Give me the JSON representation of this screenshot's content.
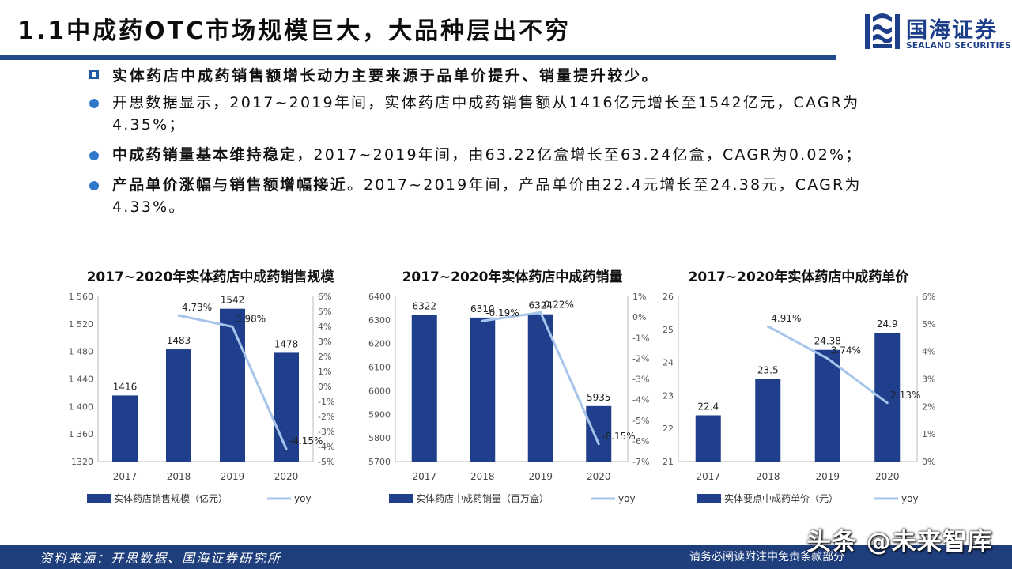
{
  "header": {
    "title": "1.1中成药OTC市场规模巨大，大品种层出不穷",
    "logo_cn": "国海证券",
    "logo_en": "SEALAND SECURITIES"
  },
  "bullets": [
    {
      "bold": "实体药店中成药销售额增长动力主要来源于品单价提升、销量提升较少。",
      "rest": ""
    },
    {
      "bold": "",
      "rest": "开思数据显示，2017~2019年间，实体药店中成药销售额从1416亿元增长至1542亿元，CAGR为4.35%；"
    },
    {
      "bold": "中成药销量基本维持稳定",
      "rest": "，2017~2019年间，由63.22亿盒增长至63.24亿盒，CAGR为0.02%；"
    },
    {
      "bold": "产品单价涨幅与销售额增幅接近",
      "rest": "。2017~2019年间，产品单价由22.4元增长至24.38元，CAGR为4.33%。"
    }
  ],
  "chart_data": [
    {
      "type": "bar",
      "title": "2017~2020年实体药店中成药销售规模",
      "categories": [
        "2017",
        "2018",
        "2019",
        "2020"
      ],
      "series": [
        {
          "name": "实体药店销售规模（亿元）",
          "type": "bar",
          "values": [
            1416,
            1483,
            1542,
            1478
          ],
          "labels": [
            "1416",
            "1483",
            "1542",
            "1478"
          ]
        },
        {
          "name": "yoy",
          "type": "line",
          "axis": "right",
          "values": [
            null,
            4.73,
            3.98,
            -4.15
          ],
          "labels": [
            "",
            "4.73%",
            "3.98%",
            "-4.15%"
          ]
        }
      ],
      "ylim": [
        1320,
        1560
      ],
      "yticks": [
        1320,
        1360,
        1400,
        1440,
        1480,
        1520,
        1560
      ],
      "ytick_labels": [
        "1320",
        "1 360",
        "1 400",
        "1 440",
        "1 480",
        "1 520",
        "1 560"
      ],
      "y2lim": [
        -5,
        6
      ],
      "y2ticks": [
        -5,
        -4,
        -3,
        -2,
        -1,
        0,
        1,
        2,
        3,
        4,
        5,
        6
      ],
      "y2tick_labels": [
        "-5%",
        "-4%",
        "-3%",
        "-2%",
        "-1%",
        "0%",
        "1%",
        "2%",
        "3%",
        "4%",
        "5%",
        "6%"
      ],
      "legend": "bottom",
      "colors": {
        "bar": "#1f3f8c",
        "line": "#a7c4ea"
      }
    },
    {
      "type": "bar",
      "title": "2017~2020年实体药店中成药销量",
      "categories": [
        "2017",
        "2018",
        "2019",
        "2020"
      ],
      "series": [
        {
          "name": "实体药店中成药销量（百万盒）",
          "type": "bar",
          "values": [
            6322,
            6310,
            6324,
            5935
          ],
          "labels": [
            "6322",
            "6310",
            "6324",
            "5935"
          ]
        },
        {
          "name": "yoy",
          "type": "line",
          "axis": "right",
          "values": [
            null,
            -0.19,
            0.22,
            -6.15
          ],
          "labels": [
            "",
            "-0.19%",
            "0.22%",
            "-6.15%"
          ]
        }
      ],
      "ylim": [
        5700,
        6400
      ],
      "yticks": [
        5700,
        5800,
        5900,
        6000,
        6100,
        6200,
        6300,
        6400
      ],
      "ytick_labels": [
        "5700",
        "5800",
        "5900",
        "6000",
        "6100",
        "6200",
        "6300",
        "6400"
      ],
      "y2lim": [
        -7,
        1
      ],
      "y2ticks": [
        -7,
        -6,
        -5,
        -4,
        -3,
        -2,
        -1,
        0,
        1
      ],
      "y2tick_labels": [
        "-7%",
        "-6%",
        "-5%",
        "-4%",
        "-3%",
        "-2%",
        "-1%",
        "0%",
        "1%"
      ],
      "legend": "bottom",
      "colors": {
        "bar": "#1f3f8c",
        "line": "#a7c4ea"
      }
    },
    {
      "type": "bar",
      "title": "2017~2020年实体药店中成药单价",
      "categories": [
        "2017",
        "2018",
        "2019",
        "2020"
      ],
      "series": [
        {
          "name": "实体要点中成药单价（元）",
          "type": "bar",
          "values": [
            22.4,
            23.5,
            24.38,
            24.9
          ],
          "labels": [
            "22.4",
            "23.5",
            "24.38",
            "24.9"
          ]
        },
        {
          "name": "yoy",
          "type": "line",
          "axis": "right",
          "values": [
            null,
            4.91,
            3.74,
            2.13
          ],
          "labels": [
            "",
            "4.91%",
            "3.74%",
            "2.13%"
          ]
        }
      ],
      "ylim": [
        21,
        26
      ],
      "yticks": [
        21,
        22,
        23,
        24,
        25,
        26
      ],
      "ytick_labels": [
        "21",
        "22",
        "23",
        "24",
        "25",
        "26"
      ],
      "y2lim": [
        0,
        6
      ],
      "y2ticks": [
        0,
        1,
        2,
        3,
        4,
        5,
        6
      ],
      "y2tick_labels": [
        "0%",
        "1%",
        "2%",
        "3%",
        "4%",
        "5%",
        "6%"
      ],
      "legend": "bottom",
      "colors": {
        "bar": "#1f3f8c",
        "line": "#a7c4ea"
      }
    }
  ],
  "footer": {
    "source": "资料来源：开思数据、国海证券研究所",
    "notice": "请务必阅读附注中免责条款部分"
  },
  "watermark": "头条 @未来智库"
}
